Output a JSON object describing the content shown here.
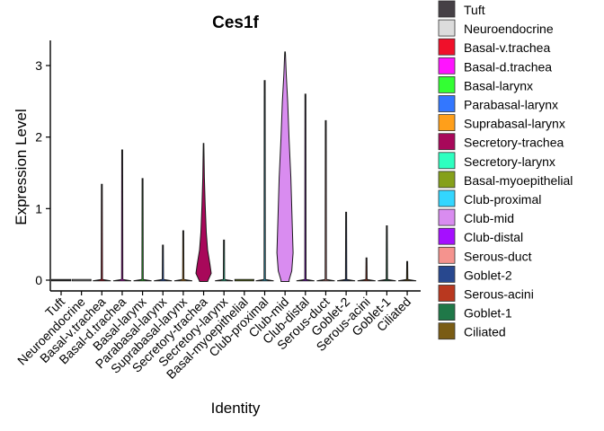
{
  "chart_data": {
    "type": "violin",
    "title": "Ces1f",
    "xlabel": "Identity",
    "ylabel": "Expression Level",
    "ylim": [
      -0.15,
      3.35
    ],
    "yticks": [
      0,
      1,
      2,
      3
    ],
    "legend_position": "right",
    "groups": [
      {
        "name": "Tuft",
        "color": "#454045",
        "max": 0.0,
        "shape": "flat"
      },
      {
        "name": "Neuroendocrine",
        "color": "#dcdcdc",
        "max": 0.0,
        "shape": "flat"
      },
      {
        "name": "Basal-v.trachea",
        "color": "#f0102a",
        "max": 1.34,
        "shape": "line"
      },
      {
        "name": "Basal-d.trachea",
        "color": "#ff14ff",
        "max": 1.82,
        "shape": "line"
      },
      {
        "name": "Basal-larynx",
        "color": "#33ff33",
        "max": 1.42,
        "shape": "line"
      },
      {
        "name": "Parabasal-larynx",
        "color": "#3377ff",
        "max": 0.49,
        "shape": "line"
      },
      {
        "name": "Suprabasal-larynx",
        "color": "#ff9f1a",
        "max": 0.69,
        "shape": "line"
      },
      {
        "name": "Secretory-trachea",
        "color": "#a8085a",
        "max": 1.91,
        "shape": "body"
      },
      {
        "name": "Secretory-larynx",
        "color": "#2effc0",
        "max": 0.56,
        "shape": "line"
      },
      {
        "name": "Basal-myoepithelial",
        "color": "#85a01a",
        "max": 0.0,
        "shape": "flat"
      },
      {
        "name": "Club-proximal",
        "color": "#33d6ff",
        "max": 2.79,
        "shape": "line"
      },
      {
        "name": "Club-mid",
        "color": "#d98cf0",
        "max": 3.19,
        "shape": "body"
      },
      {
        "name": "Club-distal",
        "color": "#a50fff",
        "max": 2.6,
        "shape": "line"
      },
      {
        "name": "Serous-duct",
        "color": "#f5938e",
        "max": 2.23,
        "shape": "line"
      },
      {
        "name": "Goblet-2",
        "color": "#28488f",
        "max": 0.95,
        "shape": "line"
      },
      {
        "name": "Serous-acini",
        "color": "#b9381f",
        "max": 0.31,
        "shape": "line"
      },
      {
        "name": "Goblet-1",
        "color": "#1f7848",
        "max": 0.76,
        "shape": "line"
      },
      {
        "name": "Ciliated",
        "color": "#7a5c14",
        "max": 0.26,
        "shape": "line"
      }
    ]
  }
}
